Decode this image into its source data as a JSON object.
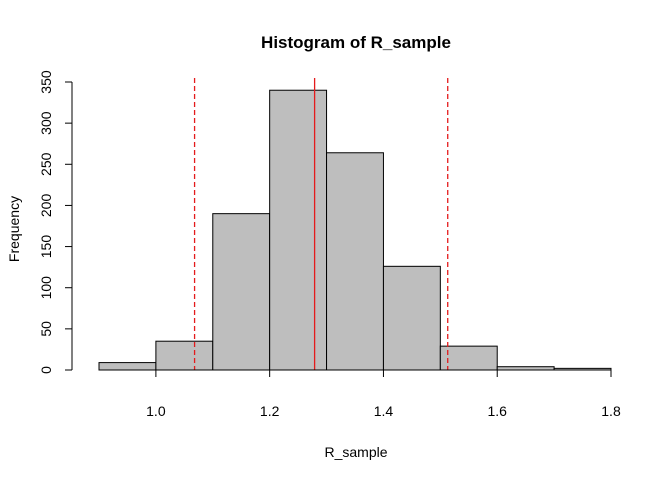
{
  "chart_data": {
    "type": "bar",
    "title": "Histogram of R_sample",
    "xlabel": "R_sample",
    "ylabel": "Frequency",
    "xlim": [
      0.9,
      1.8
    ],
    "ylim": [
      0,
      350
    ],
    "bin_width": 0.1,
    "bins": [
      {
        "start": 0.9,
        "end": 1.0,
        "count": 9
      },
      {
        "start": 1.0,
        "end": 1.1,
        "count": 35
      },
      {
        "start": 1.1,
        "end": 1.2,
        "count": 190
      },
      {
        "start": 1.2,
        "end": 1.3,
        "count": 340
      },
      {
        "start": 1.3,
        "end": 1.4,
        "count": 264
      },
      {
        "start": 1.4,
        "end": 1.5,
        "count": 126
      },
      {
        "start": 1.5,
        "end": 1.6,
        "count": 29
      },
      {
        "start": 1.6,
        "end": 1.7,
        "count": 4
      },
      {
        "start": 1.7,
        "end": 1.8,
        "count": 2
      }
    ],
    "x_ticks": [
      "1.0",
      "1.2",
      "1.4",
      "1.6",
      "1.8"
    ],
    "y_ticks": [
      "0",
      "50",
      "100",
      "150",
      "200",
      "250",
      "300",
      "350"
    ],
    "vertical_lines": [
      {
        "x": 1.068,
        "style": "dashed",
        "color": "#e41a1c"
      },
      {
        "x": 1.279,
        "style": "solid",
        "color": "#e41a1c"
      },
      {
        "x": 1.513,
        "style": "dashed",
        "color": "#e41a1c"
      }
    ],
    "bar_fill": "#bebebe",
    "bar_stroke": "#000000",
    "grid": false,
    "legend": "none"
  }
}
